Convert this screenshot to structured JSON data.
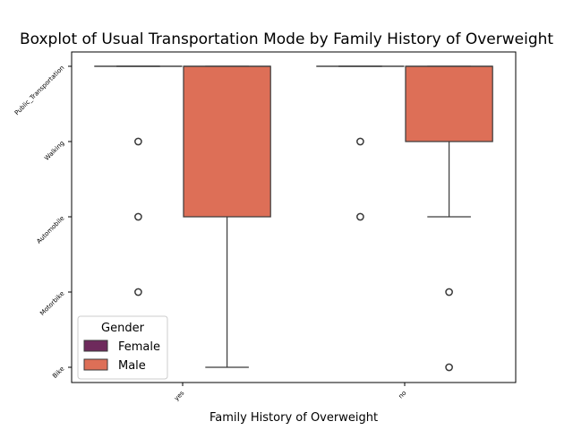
{
  "chart_data": {
    "type": "box",
    "title": "Boxplot of Usual Transportation Mode by Family History of Overweight",
    "xlabel": "Family History of Overweight",
    "ylabel": "",
    "categories": [
      "yes",
      "no"
    ],
    "y_categories": [
      "Public_Transportation",
      "Walking",
      "Automobile",
      "Motorbike",
      "Bike"
    ],
    "legend": {
      "title": "Gender",
      "position": "lower-left",
      "items": [
        {
          "name": "Female",
          "color": "#6e2a5c"
        },
        {
          "name": "Male",
          "color": "#dd6f57"
        }
      ]
    },
    "series": [
      {
        "name": "Female",
        "color": "#6e2a5c",
        "boxes": [
          {
            "category": "yes",
            "whisker_low": 0,
            "q1": 0,
            "median": 0,
            "q3": 0,
            "whisker_high": 0,
            "outliers": [
              1,
              2,
              3
            ]
          },
          {
            "category": "no",
            "whisker_low": 0,
            "q1": 0,
            "median": 0,
            "q3": 0,
            "whisker_high": 0,
            "outliers": [
              1,
              2
            ]
          }
        ]
      },
      {
        "name": "Male",
        "color": "#dd6f57",
        "boxes": [
          {
            "category": "yes",
            "whisker_low": 0,
            "q1": 0,
            "median": 0,
            "q3": 2,
            "whisker_high": 4,
            "outliers": []
          },
          {
            "category": "no",
            "whisker_low": 0,
            "q1": 0,
            "median": 0,
            "q3": 1,
            "whisker_high": 2,
            "outliers": [
              3,
              4
            ]
          }
        ]
      }
    ],
    "grid": false
  }
}
